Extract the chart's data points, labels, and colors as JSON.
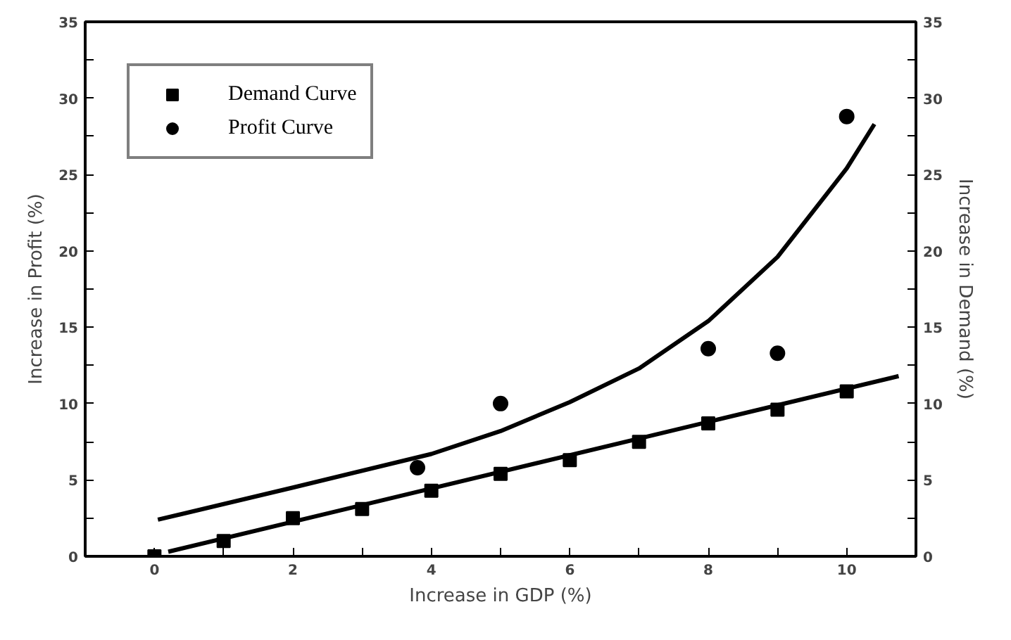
{
  "chart_data": {
    "type": "scatter",
    "xlabel": "Increase in GDP (%)",
    "ylabel": "Increase in Profit (%)",
    "y2label": "Increase in Demand (%)",
    "xlim": [
      -1,
      11
    ],
    "xticks": [
      0,
      {
        "value": 1,
        "label": null
      },
      2,
      {
        "value": 3,
        "label": null
      },
      4,
      {
        "value": 5,
        "label": null
      },
      6,
      {
        "value": 7,
        "label": null
      },
      8,
      {
        "value": 9,
        "label": null
      },
      10
    ],
    "ylim": [
      0,
      35
    ],
    "yticks": [
      0,
      {
        "value": 2.5,
        "label": null
      },
      5,
      {
        "value": 7.5,
        "label": null
      },
      10,
      {
        "value": 12.5,
        "label": null
      },
      15,
      {
        "value": 17.5,
        "label": null
      },
      20,
      {
        "value": 22.5,
        "label": null
      },
      25,
      {
        "value": 27.5,
        "label": null
      },
      30,
      {
        "value": 32.5,
        "label": null
      },
      35
    ],
    "y2lim": [
      0,
      35
    ],
    "y2ticks": [
      0,
      {
        "value": 2.5,
        "label": null
      },
      5,
      {
        "value": 7.5,
        "label": null
      },
      10,
      {
        "value": 12.5,
        "label": null
      },
      15,
      {
        "value": 17.5,
        "label": null
      },
      20,
      {
        "value": 22.5,
        "label": null
      },
      25,
      {
        "value": 27.5,
        "label": null
      },
      30,
      {
        "value": 32.5,
        "label": null
      },
      35
    ],
    "grid": false,
    "legend": "top left",
    "series": [
      {
        "name": "Demand Curve",
        "marker": "square",
        "color": "#000000",
        "x": [
          0,
          1,
          2,
          3,
          4,
          5,
          6,
          7,
          8,
          9,
          10
        ],
        "values": [
          0,
          1,
          2.5,
          3.1,
          4.3,
          5.4,
          6.3,
          7.5,
          8.7,
          9.6,
          10.8
        ]
      },
      {
        "name": "Profit Curve",
        "marker": "circle",
        "color": "#000000",
        "x": [
          3.8,
          5,
          8,
          9,
          10
        ],
        "values": [
          5.8,
          10,
          13.6,
          13.3,
          28.8
        ]
      },
      {
        "type": "line",
        "color": "#000000",
        "x": [
          0.2,
          10.75
        ],
        "values": [
          0.3,
          11.8
        ]
      },
      {
        "type": "line",
        "color": "#000000",
        "x": [
          0.05,
          2,
          4,
          5,
          6,
          7,
          8,
          9,
          10,
          10.4
        ],
        "values": [
          2.4,
          4.5,
          6.7,
          8.2,
          10.1,
          12.3,
          15.4,
          19.6,
          25.4,
          28.3
        ]
      }
    ]
  }
}
